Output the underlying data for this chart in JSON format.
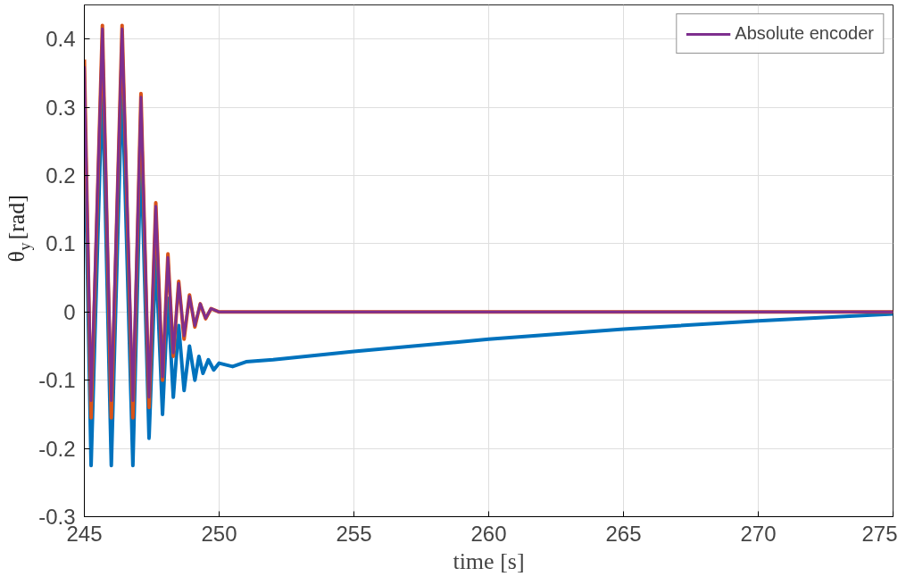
{
  "chart_data": {
    "type": "line",
    "xlabel": "time [s]",
    "ylabel": "θ$_{y}$[rad]",
    "xlim": [
      245,
      275
    ],
    "ylim": [
      -0.3,
      0.45
    ],
    "xticks": [
      245,
      250,
      255,
      260,
      265,
      270,
      275
    ],
    "yticks": [
      -0.3,
      -0.2,
      -0.1,
      0,
      0.1,
      0.2,
      0.3,
      0.4
    ],
    "grid": true,
    "legend": "top right",
    "line_style": "solid",
    "series": [
      {
        "color": "#0072bd",
        "x": [
          245,
          245.25,
          245.67,
          246.0,
          246.4,
          246.8,
          247.1,
          247.4,
          247.65,
          247.9,
          248.1,
          248.3,
          248.5,
          248.7,
          248.9,
          249.1,
          249.25,
          249.4,
          249.6,
          249.8,
          250.0,
          250.5,
          251,
          252,
          255,
          260,
          265,
          270,
          275
        ],
        "values": [
          0.29,
          -0.225,
          0.34,
          -0.225,
          0.34,
          -0.225,
          0.24,
          -0.185,
          0.085,
          -0.15,
          0.02,
          -0.125,
          -0.02,
          -0.115,
          -0.05,
          -0.1,
          -0.065,
          -0.09,
          -0.07,
          -0.085,
          -0.075,
          -0.08,
          -0.073,
          -0.07,
          -0.058,
          -0.04,
          -0.025,
          -0.013,
          -0.003
        ]
      },
      {
        "color": "#d95319",
        "x": [
          245,
          245.25,
          245.67,
          246.0,
          246.4,
          246.8,
          247.1,
          247.4,
          247.65,
          247.9,
          248.1,
          248.3,
          248.5,
          248.7,
          248.9,
          249.1,
          249.3,
          249.5,
          249.7,
          250.0,
          252,
          275
        ],
        "values": [
          0.37,
          -0.155,
          0.42,
          -0.155,
          0.42,
          -0.155,
          0.32,
          -0.14,
          0.16,
          -0.1,
          0.085,
          -0.065,
          0.045,
          -0.04,
          0.025,
          -0.022,
          0.012,
          -0.01,
          0.005,
          0,
          0,
          0
        ]
      },
      {
        "name": "Absolute encoder",
        "color": "#7e2f8e",
        "x": [
          245,
          245.25,
          245.67,
          246.0,
          246.4,
          246.8,
          247.1,
          247.4,
          247.65,
          247.9,
          248.1,
          248.3,
          248.5,
          248.7,
          248.9,
          249.1,
          249.3,
          249.5,
          249.7,
          250.0,
          252,
          275
        ],
        "values": [
          0.36,
          -0.13,
          0.415,
          -0.13,
          0.415,
          -0.13,
          0.315,
          -0.125,
          0.155,
          -0.095,
          0.08,
          -0.06,
          0.042,
          -0.035,
          0.023,
          -0.02,
          0.012,
          -0.009,
          0.005,
          0,
          0,
          0
        ]
      }
    ]
  }
}
